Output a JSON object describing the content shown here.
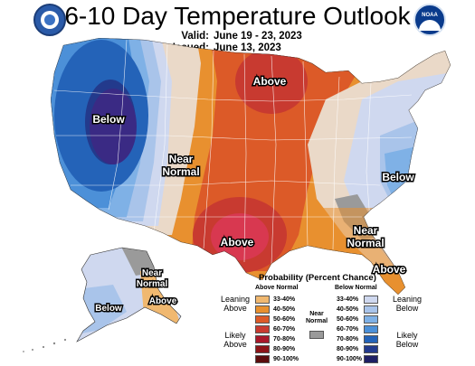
{
  "header": {
    "title": "6-10 Day Temperature Outlook",
    "valid_label": "Valid:",
    "valid_value": "June 19 - 23, 2023",
    "issued_label": "Issued:",
    "issued_value": "June 13, 2023"
  },
  "logos": {
    "left": "doc-seal-icon",
    "right": "noaa-logo-icon",
    "noaa_text": "NOAA"
  },
  "map_labels": {
    "below_west": "Below",
    "near_normal_central": [
      "Near",
      "Normal"
    ],
    "above_north": "Above",
    "above_south": "Above",
    "below_east": "Below",
    "near_normal_se": [
      "Near",
      "Normal"
    ],
    "above_florida": "Above",
    "near_normal_ak": [
      "Near",
      "Normal"
    ],
    "above_ak": "Above",
    "below_ak": "Below"
  },
  "legend": {
    "title": "Probability (Percent Chance)",
    "above_header": "Above Normal",
    "below_header": "Below Normal",
    "near_label": [
      "Near",
      "Normal"
    ],
    "leaning_above": [
      "Leaning",
      "Above"
    ],
    "likely_above": [
      "Likely",
      "Above"
    ],
    "leaning_below": [
      "Leaning",
      "Below"
    ],
    "likely_below": [
      "Likely",
      "Below"
    ],
    "above_rows": [
      {
        "range": "33-40%",
        "color": "#f0b870"
      },
      {
        "range": "40-50%",
        "color": "#e8902f"
      },
      {
        "range": "50-60%",
        "color": "#dc5a28"
      },
      {
        "range": "60-70%",
        "color": "#c83a30"
      },
      {
        "range": "70-80%",
        "color": "#a8182a"
      },
      {
        "range": "80-90%",
        "color": "#8c1418"
      },
      {
        "range": "90-100%",
        "color": "#5c0c0c"
      }
    ],
    "below_rows": [
      {
        "range": "33-40%",
        "color": "#cfd8ef"
      },
      {
        "range": "40-50%",
        "color": "#a9c4ea"
      },
      {
        "range": "50-60%",
        "color": "#7fb1e6"
      },
      {
        "range": "60-70%",
        "color": "#4c90d8"
      },
      {
        "range": "70-80%",
        "color": "#2463b8"
      },
      {
        "range": "80-90%",
        "color": "#233a8c"
      },
      {
        "range": "90-100%",
        "color": "#1e1f64"
      }
    ],
    "near_color": "#9a9a9a"
  }
}
